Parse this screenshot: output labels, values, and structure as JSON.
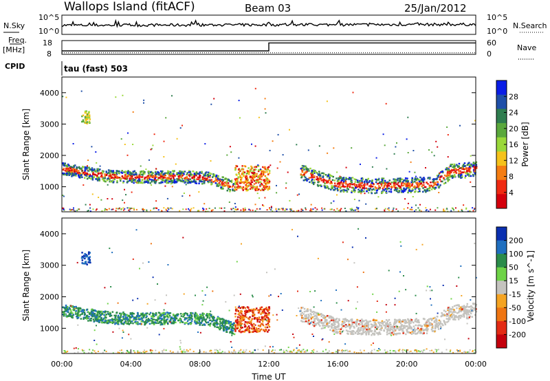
{
  "header": {
    "station": "Wallops Island (fitACF)",
    "beam": "Beam 03",
    "date": "25/Jan/2012"
  },
  "left_labels": {
    "nsky": "N.Sky",
    "freq": "Freq.",
    "freq_unit": "[MHz]",
    "cpid": "CPID"
  },
  "right_labels": {
    "nsearch": "N.Search",
    "nave": "Nave"
  },
  "cpid_label": "tau (fast) 503",
  "colors": {
    "power": [
      "#0a1de6",
      "#1f4fa8",
      "#2f7d4f",
      "#5aa83c",
      "#9ad83a",
      "#f5c21b",
      "#f57d12",
      "#ef2a12",
      "#d4000c"
    ],
    "velocity": [
      "#0a2fb0",
      "#1f6fbf",
      "#2b8c4a",
      "#6ed347",
      "#c4c3be",
      "#f5a422",
      "#ef7512",
      "#e32b14",
      "#c4000c"
    ]
  },
  "chart_data": [
    {
      "type": "line",
      "name_left": "N.Sky",
      "name_right": "N.Search",
      "y_ticks_left": [
        "10^5",
        "10^0"
      ],
      "y_ticks_right": [
        "10^5",
        "10^0"
      ],
      "x": [
        "00:00",
        "24:00"
      ],
      "noise_trend": [
        0.25,
        0.3
      ]
    },
    {
      "type": "line",
      "name_left": "Freq. [MHz]",
      "name_right": "Nave",
      "y_ticks_left": [
        "18",
        "8"
      ],
      "y_ticks_right": [
        "60",
        "0"
      ],
      "freq_series": {
        "x": [
          0,
          12,
          12,
          24
        ],
        "y": [
          10.5,
          10.5,
          16.3,
          16.3
        ]
      },
      "nave_series": {
        "x": [
          0,
          24
        ],
        "y": [
          7,
          7
        ]
      }
    },
    {
      "type": "heatmap",
      "quantity": "Power",
      "ylabel": "Slant Range [km]",
      "ylim": [
        200,
        4500
      ],
      "yticks": [
        1000,
        2000,
        3000,
        4000
      ],
      "xlim": [
        0,
        24
      ],
      "colorbar_label": "Power [dB]",
      "colorbar_ticks": [
        "28",
        "24",
        "20",
        "16",
        "12",
        "8",
        "4"
      ],
      "bands": [
        {
          "x": [
            0.0,
            1.5,
            3.0,
            5.0,
            7.0,
            8.5,
            10.0
          ],
          "y": [
            1600,
            1450,
            1350,
            1330,
            1350,
            1300,
            1000
          ],
          "width": 120
        },
        {
          "x": [
            13.8,
            15.0,
            16.0,
            18.0,
            20.0,
            21.5,
            22.5,
            24.0
          ],
          "y": [
            1500,
            1250,
            1100,
            1050,
            1080,
            1100,
            1500,
            1600
          ],
          "width": 150
        }
      ],
      "cluster": {
        "x": [
          10.0,
          12.0
        ],
        "y": [
          900,
          1700
        ]
      }
    },
    {
      "type": "heatmap",
      "quantity": "Velocity",
      "ylabel": "Slant Range [km]",
      "xlabel": "Time UT",
      "ylim": [
        200,
        4500
      ],
      "yticks": [
        1000,
        2000,
        3000,
        4000
      ],
      "xlim": [
        0,
        24
      ],
      "xticks": [
        "00:00",
        "04:00",
        "08:00",
        "12:00",
        "16:00",
        "20:00",
        "00:00"
      ],
      "colorbar_label": "Velocity [m s^-1]",
      "colorbar_ticks": [
        "200",
        "100",
        "50",
        "15",
        "-15",
        "-50",
        "-100",
        "-200"
      ]
    }
  ]
}
